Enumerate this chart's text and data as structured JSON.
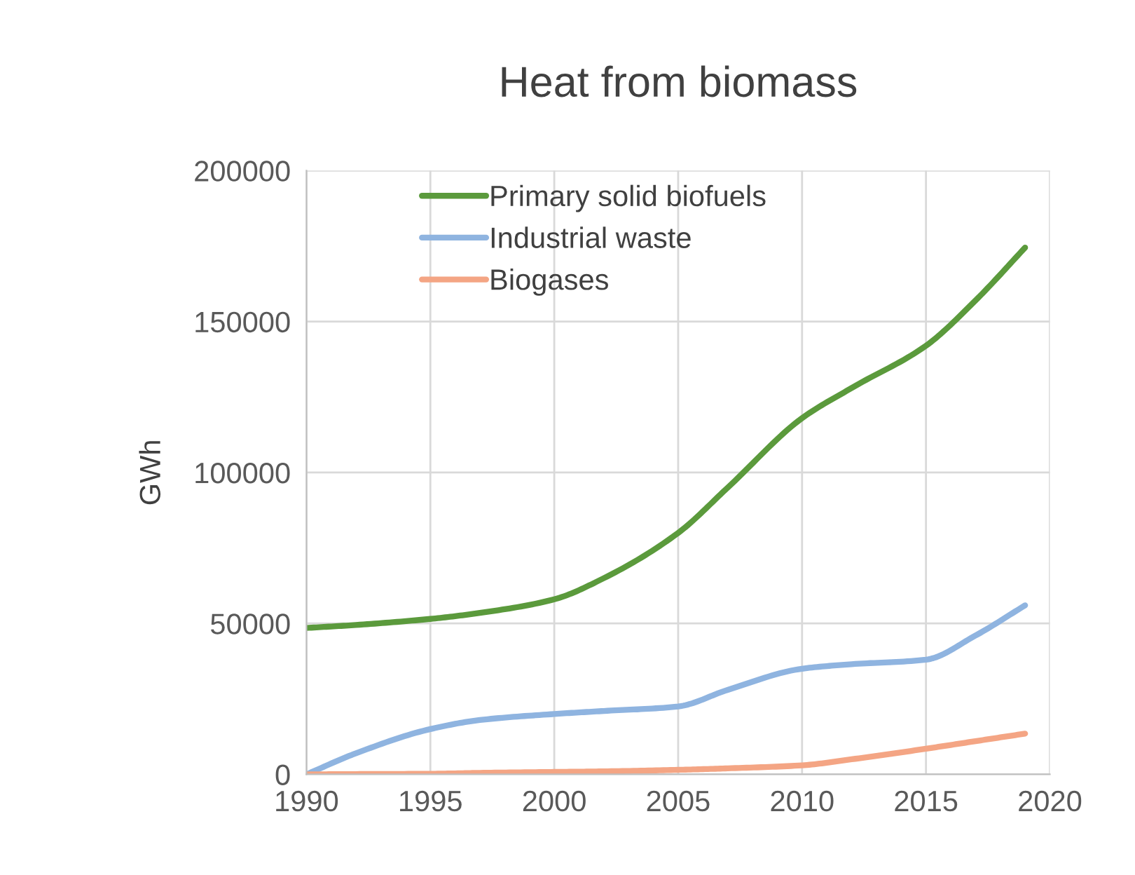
{
  "chart_data": {
    "type": "line",
    "title": "Heat from biomass",
    "ylabel": "GWh",
    "x": [
      1990,
      1992,
      1995,
      1997,
      2000,
      2002,
      2005,
      2007,
      2010,
      2012,
      2015,
      2017,
      2019
    ],
    "series": [
      {
        "name": "Primary solid biofuels",
        "color": "#5b9a3c",
        "values": [
          48500,
          49500,
          51500,
          53500,
          58000,
          65000,
          80000,
          95000,
          118000,
          128000,
          142000,
          157000,
          174500
        ]
      },
      {
        "name": "Industrial waste",
        "color": "#8fb4e0",
        "values": [
          0,
          7000,
          15000,
          18000,
          20000,
          21000,
          22500,
          28000,
          35000,
          36500,
          38000,
          46000,
          56000
        ]
      },
      {
        "name": "Biogases",
        "color": "#f4a584",
        "values": [
          0,
          100,
          200,
          500,
          800,
          1000,
          1500,
          2000,
          3000,
          5000,
          8500,
          11000,
          13500
        ]
      }
    ],
    "xlim": [
      1990,
      2020
    ],
    "xticks": [
      1990,
      1995,
      2000,
      2005,
      2010,
      2015,
      2020
    ],
    "ylim": [
      0,
      200000
    ],
    "yticks": [
      0,
      50000,
      100000,
      150000,
      200000
    ],
    "grid": true,
    "legend": "top left",
    "line_style": "solid",
    "marker": "none"
  }
}
